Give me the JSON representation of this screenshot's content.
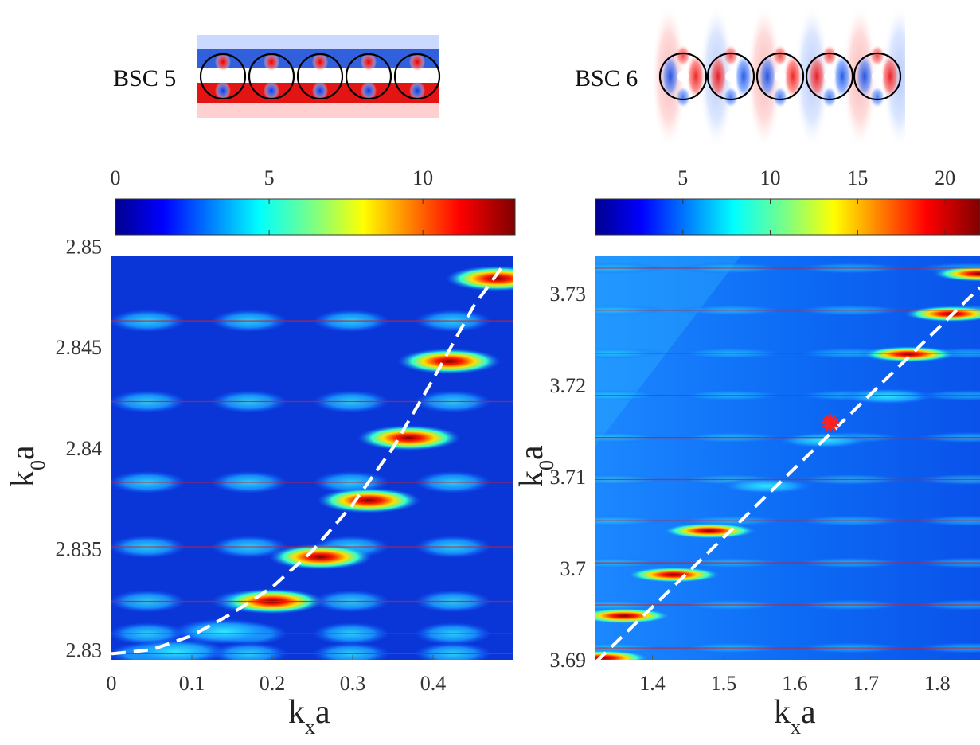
{
  "panels": [
    {
      "label": "BSC 5",
      "colorbar_ticks": [
        "0",
        "5",
        "10"
      ],
      "colorbar_range": [
        0,
        13
      ],
      "x_ticks": [
        "0",
        "0.1",
        "0.2",
        "0.3",
        "0.4"
      ],
      "y_ticks": [
        "2.83",
        "2.835",
        "2.84",
        "2.845",
        "2.85"
      ],
      "xlabel_main": "k",
      "xlabel_sub": "x",
      "xlabel_tail": "a",
      "ylabel_main": "k",
      "ylabel_sub": "0",
      "ylabel_tail": "a"
    },
    {
      "label": "BSC 6",
      "colorbar_ticks": [
        "5",
        "10",
        "15",
        "20"
      ],
      "colorbar_range": [
        0,
        22
      ],
      "x_ticks": [
        "1.4",
        "1.5",
        "1.6",
        "1.7",
        "1.8"
      ],
      "y_ticks": [
        "3.69",
        "3.7",
        "3.71",
        "3.72",
        "3.73"
      ],
      "xlabel_main": "k",
      "xlabel_sub": "x",
      "xlabel_tail": "a",
      "ylabel_main": "k",
      "ylabel_sub": "0",
      "ylabel_tail": "a"
    }
  ],
  "chart_data": [
    {
      "type": "heatmap",
      "xlim": [
        0,
        0.5
      ],
      "ylim": [
        2.8295,
        2.8495
      ],
      "resonance_k0a": [
        2.8298,
        2.8308,
        2.8324,
        2.8351,
        2.8383,
        2.8423,
        2.8463
      ],
      "hotspots": [
        {
          "x": 0.48,
          "y": 2.8484,
          "i": 13
        },
        {
          "x": 0.42,
          "y": 2.8443,
          "i": 12
        },
        {
          "x": 0.37,
          "y": 2.8405,
          "i": 12
        },
        {
          "x": 0.32,
          "y": 2.8374,
          "i": 12
        },
        {
          "x": 0.26,
          "y": 2.8346,
          "i": 11
        },
        {
          "x": 0.2,
          "y": 2.8324,
          "i": 10
        },
        {
          "x": 0.14,
          "y": 2.8309,
          "i": 8
        },
        {
          "x": 0.08,
          "y": 2.8299,
          "i": 5
        }
      ],
      "dispersion": {
        "style": "dashed",
        "color": "#ffffff",
        "points": [
          [
            0,
            2.8298
          ],
          [
            0.05,
            2.83
          ],
          [
            0.1,
            2.8307
          ],
          [
            0.15,
            2.8318
          ],
          [
            0.2,
            2.8331
          ],
          [
            0.25,
            2.8349
          ],
          [
            0.3,
            2.8372
          ],
          [
            0.35,
            2.84
          ],
          [
            0.4,
            2.8434
          ],
          [
            0.45,
            2.847
          ],
          [
            0.49,
            2.8492
          ]
        ]
      }
    },
    {
      "type": "heatmap",
      "xlim": [
        1.32,
        1.86
      ],
      "ylim": [
        3.69,
        3.7341
      ],
      "resonance_k0a": [
        3.6913,
        3.696,
        3.7006,
        3.7052,
        3.7097,
        3.7143,
        3.7189,
        3.7235,
        3.7282,
        3.7328
      ],
      "hotspots": [
        {
          "x": 1.33,
          "y": 3.6902,
          "i": 18
        },
        {
          "x": 1.36,
          "y": 3.6948,
          "i": 20
        },
        {
          "x": 1.43,
          "y": 3.6993,
          "i": 20
        },
        {
          "x": 1.48,
          "y": 3.7041,
          "i": 19
        },
        {
          "x": 1.56,
          "y": 3.709,
          "i": 8
        },
        {
          "x": 1.64,
          "y": 3.714,
          "i": 6
        },
        {
          "x": 1.73,
          "y": 3.7188,
          "i": 9
        },
        {
          "x": 1.76,
          "y": 3.7234,
          "i": 18
        },
        {
          "x": 1.82,
          "y": 3.7278,
          "i": 19
        },
        {
          "x": 1.86,
          "y": 3.7322,
          "i": 19
        }
      ],
      "marker": {
        "x": 1.65,
        "y": 3.7159,
        "symbol": "asterisk",
        "color": "#ff2020"
      },
      "dispersion": {
        "style": "dashed",
        "color": "#ffffff",
        "points": [
          [
            1.32,
            3.6897
          ],
          [
            1.86,
            3.7307
          ]
        ]
      }
    }
  ]
}
